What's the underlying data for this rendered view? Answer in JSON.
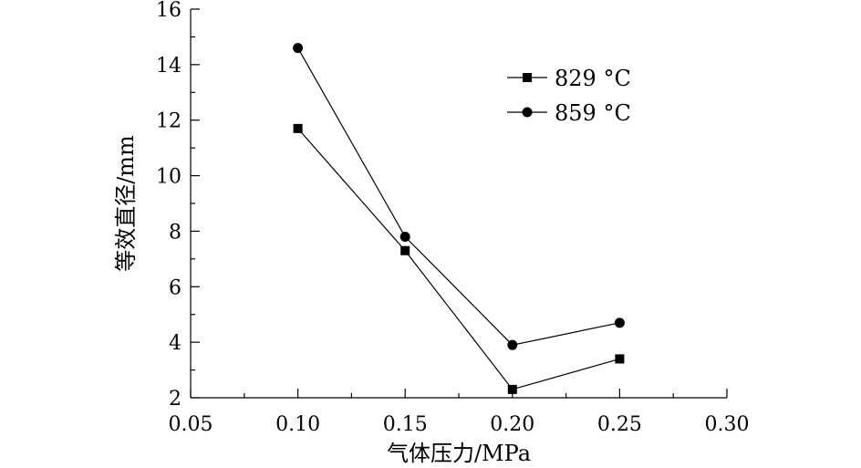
{
  "chart_data": {
    "type": "line",
    "title": "",
    "xlabel": "气体压力/MPa",
    "ylabel": "等效直径/mm",
    "xlim": [
      0.05,
      0.3
    ],
    "ylim": [
      2,
      16
    ],
    "x_ticks": [
      "0.05",
      "0.10",
      "0.15",
      "0.20",
      "0.25",
      "0.30"
    ],
    "y_ticks": [
      "2",
      "4",
      "6",
      "8",
      "10",
      "12",
      "14",
      "16"
    ],
    "grid": false,
    "legend_position": "top-right",
    "x": [
      0.1,
      0.15,
      0.2,
      0.25
    ],
    "series": [
      {
        "name": "829 °C",
        "marker": "square",
        "values": [
          11.7,
          7.3,
          2.3,
          3.4
        ]
      },
      {
        "name": "859 °C",
        "marker": "circle",
        "values": [
          14.6,
          7.8,
          3.9,
          4.7
        ]
      }
    ]
  }
}
